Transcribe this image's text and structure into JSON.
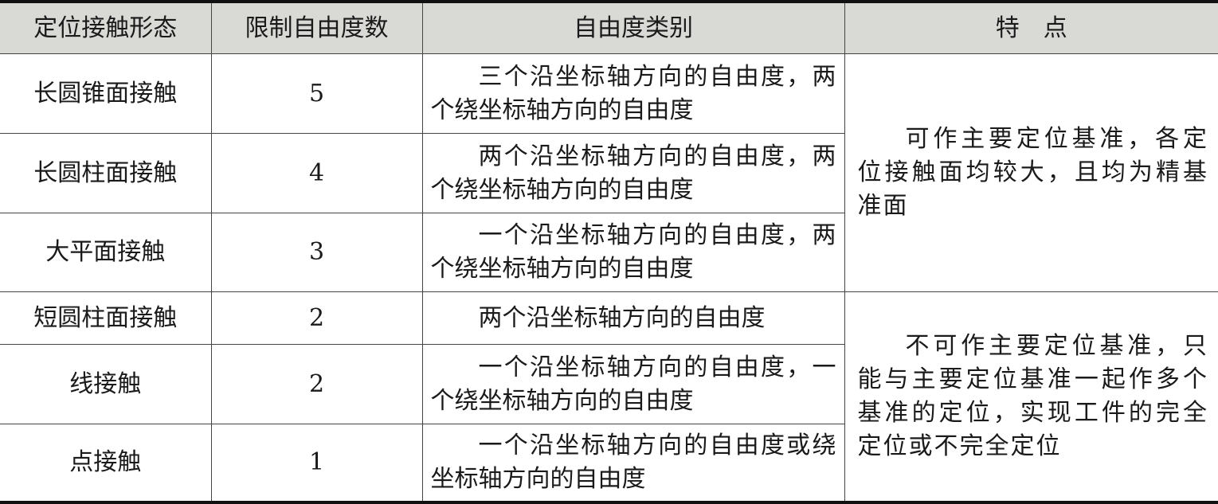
{
  "headers": [
    "定位接触形态",
    "限制自由度数",
    "自由度类别",
    "特　点"
  ],
  "rows": [
    {
      "form": "长圆锥面接触",
      "dof": "5",
      "category": "三个沿坐标轴方向的自由度，两个绕坐标轴方向的自由度"
    },
    {
      "form": "长圆柱面接触",
      "dof": "4",
      "category": "两个沿坐标轴方向的自由度，两个绕坐标轴方向的自由度"
    },
    {
      "form": "大平面接触",
      "dof": "3",
      "category": "一个沿坐标轴方向的自由度，两个绕坐标轴方向的自由度"
    },
    {
      "form": "短圆柱面接触",
      "dof": "2",
      "category": "两个沿坐标轴方向的自由度"
    },
    {
      "form": "线接触",
      "dof": "2",
      "category": "一个沿坐标轴方向的自由度，一个绕坐标轴方向的自由度"
    },
    {
      "form": "点接触",
      "dof": "1",
      "category": "一个沿坐标轴方向的自由度或绕坐标轴方向的自由度"
    }
  ],
  "features": [
    "可作主要定位基准，各定位接触面均较大，且均为精基准面",
    "不可作主要定位基准，只能与主要定位基准一起作多个基准的定位，实现工件的完全定位或不完全定位"
  ]
}
